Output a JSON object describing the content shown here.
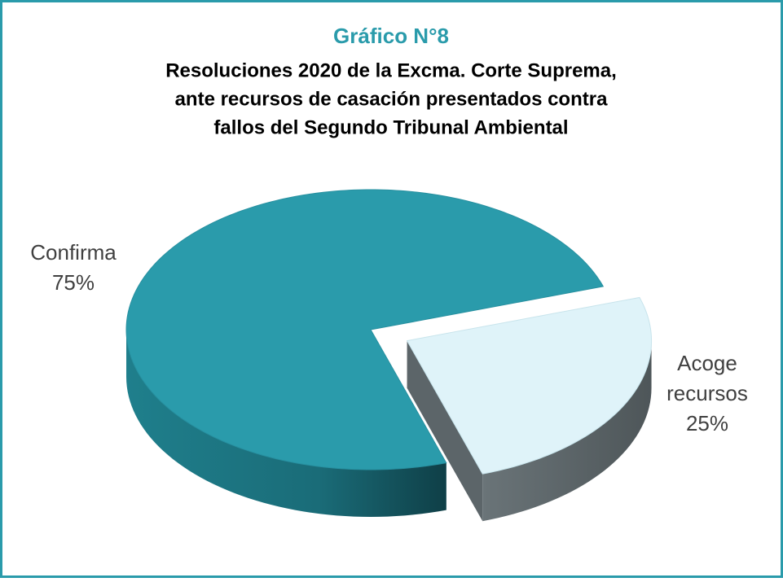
{
  "chart_data": {
    "type": "pie",
    "title": "Gráfico N°8",
    "subtitle": [
      "Resoluciones 2020 de la Excma. Corte Suprema,",
      "ante recursos de casación presentados contra",
      "fallos del Segundo Tribunal Ambiental"
    ],
    "categories": [
      "Confirma",
      "Acoge recursos"
    ],
    "values": [
      75,
      25
    ],
    "value_labels": [
      "75%",
      "25%"
    ],
    "colors": [
      "#2a9bab",
      "#dff3f9"
    ]
  }
}
